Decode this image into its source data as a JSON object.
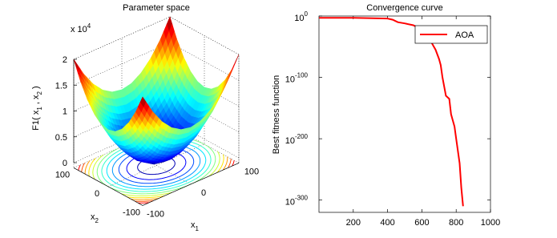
{
  "chart_data": [
    {
      "type": "surface3d",
      "title": "Parameter space",
      "zlabel": [
        {
          "text": "F1( x",
          "sub": "1"
        },
        {
          "text": " , x",
          "sub": "2"
        },
        {
          "text": " )"
        }
      ],
      "xlabel": {
        "text": "x",
        "sub": "1"
      },
      "ylabel": {
        "text": "x",
        "sub": "2"
      },
      "z_multiplier": {
        "base": "x 10",
        "exponent": "4"
      },
      "xlim": [
        -100,
        100
      ],
      "ylim": [
        -100,
        100
      ],
      "zlim": [
        0,
        20000
      ],
      "xticks": [
        -100,
        0,
        100
      ],
      "yticks": [
        -100,
        0,
        100
      ],
      "zticks": [
        0,
        {
          "value": 5000,
          "label": "0.5"
        },
        {
          "value": 10000,
          "label": "1"
        },
        {
          "value": 15000,
          "label": "1.5"
        },
        {
          "value": 20000,
          "label": "2"
        }
      ],
      "surface": {
        "x": [
          -100,
          -80,
          -60,
          -40,
          -20,
          0,
          20,
          40,
          60,
          80,
          100
        ],
        "y": [
          -100,
          -80,
          -60,
          -40,
          -20,
          0,
          20,
          40,
          60,
          80,
          100
        ],
        "z": [
          [
            20000,
            16400,
            13600,
            11600,
            10400,
            10000,
            10400,
            11600,
            13600,
            16400,
            20000
          ],
          [
            16400,
            12800,
            10000,
            8000,
            6800,
            6400,
            6800,
            8000,
            10000,
            12800,
            16400
          ],
          [
            13600,
            10000,
            7200,
            5200,
            4000,
            3600,
            4000,
            5200,
            7200,
            10000,
            13600
          ],
          [
            11600,
            8000,
            5200,
            3200,
            2000,
            1600,
            2000,
            3200,
            5200,
            8000,
            11600
          ],
          [
            10400,
            6800,
            4000,
            2000,
            800,
            400,
            800,
            2000,
            4000,
            6800,
            10400
          ],
          [
            10000,
            6400,
            3600,
            1600,
            400,
            0,
            400,
            1600,
            3600,
            6400,
            10000
          ],
          [
            10400,
            6800,
            4000,
            2000,
            800,
            400,
            800,
            2000,
            4000,
            6800,
            10400
          ],
          [
            11600,
            8000,
            5200,
            3200,
            2000,
            1600,
            2000,
            3200,
            5200,
            8000,
            11600
          ],
          [
            13600,
            10000,
            7200,
            5200,
            4000,
            3600,
            4000,
            5200,
            7200,
            10000,
            13600
          ],
          [
            16400,
            12800,
            10000,
            8000,
            6800,
            6400,
            6800,
            8000,
            10000,
            12800,
            16400
          ],
          [
            20000,
            16400,
            13600,
            11600,
            10400,
            10000,
            10400,
            11600,
            13600,
            16400,
            20000
          ]
        ]
      },
      "contour_levels": [
        1000,
        2500,
        4000,
        5500,
        7000,
        8500,
        10000,
        11500,
        13000,
        14500,
        16000,
        17500
      ],
      "colormap": "jet",
      "grid": true
    },
    {
      "type": "line",
      "title": "Convergence curve",
      "ylabel": "Best fitness function",
      "x": [
        1,
        200,
        400,
        430,
        460,
        500,
        550,
        600,
        640,
        660,
        680,
        700,
        710,
        720,
        740,
        760,
        770,
        790,
        800,
        820,
        830,
        840
      ],
      "series": [
        {
          "name": "AOA",
          "color": "#ff0000",
          "values": [
            0.001,
            0.001,
            0.0001,
            1e-06,
            1e-10,
            1e-12,
            1e-15,
            1e-22,
            1e-30,
            1e-45,
            1e-55,
            1e-70,
            1e-80,
            1e-100,
            1e-130,
            1e-135,
            1e-160,
            1e-180,
            1e-200,
            1e-240,
            1e-280,
            1e-310
          ]
        }
      ],
      "xlim": [
        0,
        1000
      ],
      "xticks": [
        200,
        400,
        600,
        800,
        1000
      ],
      "ylim": [
        1e-320,
        1
      ],
      "log_y": true,
      "yticks": [
        {
          "value": 1,
          "label": "10",
          "exponent": "0"
        },
        {
          "value": 1e-100,
          "label": "10",
          "exponent": "-100"
        },
        {
          "value": 1e-200,
          "label": "10",
          "exponent": "-200"
        },
        {
          "value": 1e-300,
          "label": "10",
          "exponent": "-300"
        }
      ],
      "legend": "upper right"
    }
  ]
}
